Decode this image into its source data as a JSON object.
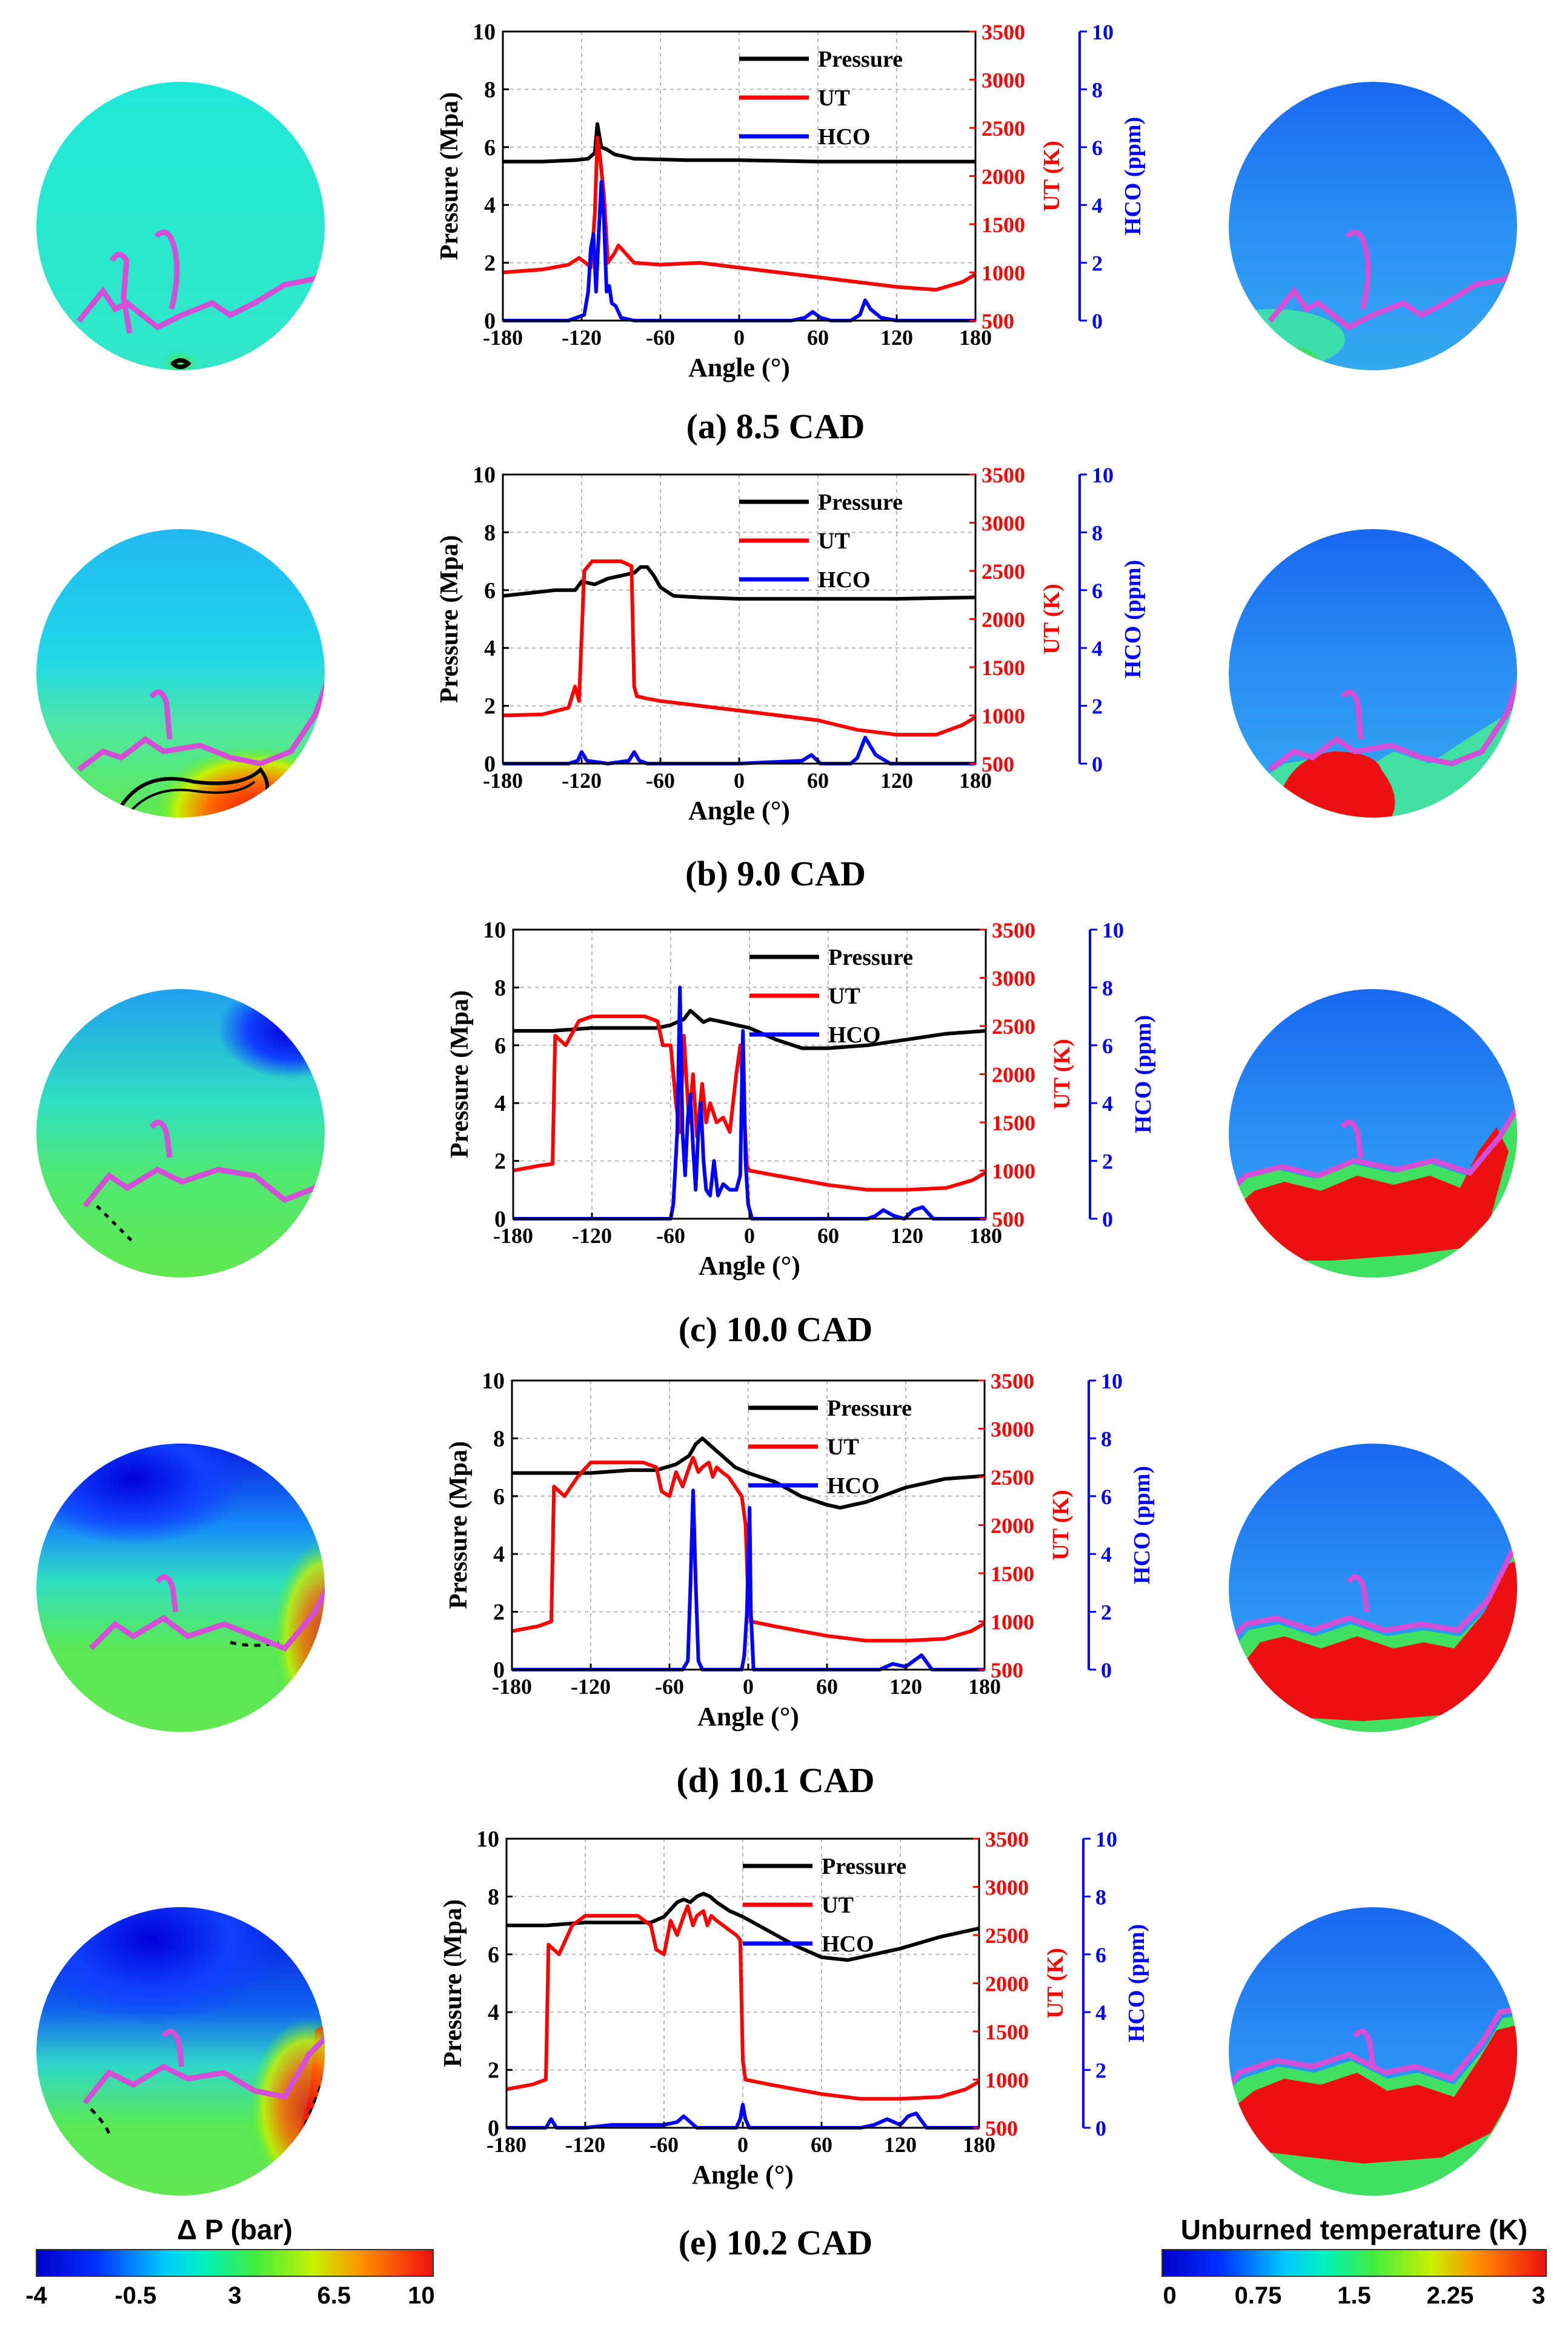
{
  "colors": {
    "pressure": "#000000",
    "ut": "#ff0000",
    "hco": "#0000ff",
    "flame_front": "#d34fd8",
    "grid": "#b8b8b8"
  },
  "axes": {
    "x_label": "Angle (°)",
    "y_left_label": "Pressure (Mpa)",
    "y_mid_label": "UT (K)",
    "y_right_label": "HCO (ppm)",
    "x_ticks": [
      "-180",
      "-120",
      "-60",
      "0",
      "60",
      "120",
      "180"
    ],
    "pressure_ticks": [
      "0",
      "2",
      "4",
      "6",
      "8",
      "10"
    ],
    "ut_ticks": [
      "500",
      "1000",
      "1500",
      "2000",
      "2500",
      "3000",
      "3500"
    ],
    "hco_ticks": [
      "0",
      "2",
      "4",
      "6",
      "8",
      "10"
    ]
  },
  "legend": [
    "Pressure",
    "UT",
    "HCO"
  ],
  "panels": [
    {
      "caption": "(a) 8.5 CAD"
    },
    {
      "caption": "(b) 9.0 CAD"
    },
    {
      "caption": "(c) 10.0 CAD"
    },
    {
      "caption": "(d) 10.1 CAD"
    },
    {
      "caption": "(e) 10.2 CAD"
    }
  ],
  "colorbar_left": {
    "title": "Δ P (bar)",
    "ticks": [
      "-4",
      "-0.5",
      "3",
      "6.5",
      "10"
    ]
  },
  "colorbar_right": {
    "title": "Unburned temperature (K)",
    "ticks": [
      "0",
      "0.75",
      "1.5",
      "2.25",
      "3"
    ]
  },
  "chart_data": [
    {
      "type": "line",
      "title": "(a) 8.5 CAD",
      "xlabel": "Angle (°)",
      "xlim": [
        -180,
        180
      ],
      "series": [
        {
          "name": "Pressure",
          "axis": "left",
          "ylim": [
            0,
            10
          ],
          "unit": "Mpa",
          "x": [
            -180,
            -150,
            -125,
            -115,
            -110,
            -108,
            -105,
            -100,
            -95,
            -80,
            -40,
            0,
            60,
            120,
            180
          ],
          "y": [
            5.5,
            5.5,
            5.55,
            5.6,
            5.8,
            6.8,
            6.0,
            5.9,
            5.75,
            5.6,
            5.55,
            5.55,
            5.5,
            5.5,
            5.5
          ]
        },
        {
          "name": "UT",
          "axis": "mid",
          "ylim": [
            500,
            3500
          ],
          "unit": "K",
          "x": [
            -180,
            -150,
            -130,
            -122,
            -117,
            -113,
            -110,
            -108,
            -106,
            -103,
            -100,
            -95,
            -92,
            -80,
            -60,
            -30,
            0,
            30,
            60,
            90,
            120,
            150,
            170,
            180
          ],
          "y": [
            1000,
            1030,
            1080,
            1150,
            1100,
            1050,
            1600,
            2400,
            2200,
            1800,
            1100,
            1200,
            1280,
            1100,
            1080,
            1100,
            1050,
            1000,
            950,
            900,
            850,
            820,
            900,
            980
          ]
        },
        {
          "name": "HCO",
          "axis": "right",
          "ylim": [
            0,
            10
          ],
          "unit": "ppm",
          "x": [
            -180,
            -130,
            -118,
            -115,
            -113,
            -111,
            -109,
            -107,
            -105,
            -103,
            -101,
            -99,
            -97,
            -94,
            -90,
            -80,
            -20,
            40,
            50,
            56,
            62,
            70,
            85,
            92,
            96,
            100,
            108,
            120,
            160,
            180
          ],
          "y": [
            0,
            0,
            0.2,
            1.0,
            2.5,
            3.0,
            1.0,
            3.0,
            4.8,
            3.5,
            1.0,
            1.2,
            0.6,
            0.5,
            0.1,
            0,
            0,
            0,
            0.1,
            0.3,
            0.1,
            0,
            0,
            0.2,
            0.7,
            0.4,
            0.1,
            0,
            0,
            0
          ]
        }
      ]
    },
    {
      "type": "line",
      "title": "(b) 9.0 CAD",
      "xlabel": "Angle (°)",
      "xlim": [
        -180,
        180
      ],
      "series": [
        {
          "name": "Pressure",
          "axis": "left",
          "ylim": [
            0,
            10
          ],
          "unit": "Mpa",
          "x": [
            -180,
            -160,
            -140,
            -125,
            -120,
            -110,
            -100,
            -90,
            -80,
            -75,
            -70,
            -65,
            -60,
            -50,
            -30,
            0,
            60,
            120,
            180
          ],
          "y": [
            5.8,
            5.9,
            6.0,
            6.0,
            6.3,
            6.2,
            6.4,
            6.5,
            6.6,
            6.8,
            6.8,
            6.5,
            6.1,
            5.8,
            5.75,
            5.7,
            5.7,
            5.7,
            5.75
          ]
        },
        {
          "name": "UT",
          "axis": "mid",
          "ylim": [
            500,
            3500
          ],
          "unit": "K",
          "x": [
            -180,
            -150,
            -130,
            -125,
            -122,
            -118,
            -112,
            -100,
            -90,
            -82,
            -80,
            -78,
            -72,
            -60,
            -30,
            0,
            30,
            60,
            90,
            120,
            150,
            170,
            180
          ],
          "y": [
            1000,
            1010,
            1080,
            1300,
            1150,
            2500,
            2600,
            2600,
            2600,
            2550,
            1300,
            1200,
            1180,
            1150,
            1100,
            1050,
            1000,
            950,
            850,
            800,
            800,
            900,
            980
          ]
        },
        {
          "name": "HCO",
          "axis": "right",
          "ylim": [
            0,
            10
          ],
          "unit": "ppm",
          "x": [
            -180,
            -130,
            -123,
            -120,
            -116,
            -100,
            -84,
            -80,
            -76,
            -70,
            0,
            48,
            55,
            62,
            85,
            90,
            96,
            104,
            115,
            180
          ],
          "y": [
            0,
            0,
            0.1,
            0.4,
            0.1,
            0,
            0.1,
            0.4,
            0.1,
            0,
            0,
            0.1,
            0.3,
            0,
            0,
            0.2,
            0.9,
            0.3,
            0,
            0
          ]
        }
      ]
    },
    {
      "type": "line",
      "title": "(c) 10.0 CAD",
      "xlabel": "Angle (°)",
      "xlim": [
        -180,
        180
      ],
      "series": [
        {
          "name": "Pressure",
          "axis": "left",
          "ylim": [
            0,
            10
          ],
          "unit": "Mpa",
          "x": [
            -180,
            -150,
            -120,
            -90,
            -70,
            -60,
            -50,
            -45,
            -40,
            -35,
            -30,
            -20,
            -10,
            0,
            20,
            40,
            60,
            90,
            120,
            150,
            180
          ],
          "y": [
            6.5,
            6.5,
            6.6,
            6.6,
            6.6,
            6.7,
            6.9,
            7.2,
            7.0,
            6.8,
            6.9,
            6.8,
            6.7,
            6.6,
            6.2,
            5.9,
            5.9,
            6.0,
            6.2,
            6.4,
            6.5
          ]
        },
        {
          "name": "UT",
          "axis": "mid",
          "ylim": [
            500,
            3500
          ],
          "unit": "K",
          "x": [
            -180,
            -160,
            -150,
            -148,
            -140,
            -130,
            -120,
            -100,
            -80,
            -70,
            -66,
            -60,
            -56,
            -53,
            -50,
            -46,
            -43,
            -40,
            -36,
            -33,
            -30,
            -25,
            -20,
            -15,
            -10,
            -7,
            -4,
            -2,
            0,
            20,
            40,
            60,
            90,
            120,
            150,
            170,
            180
          ],
          "y": [
            1000,
            1050,
            1070,
            2400,
            2300,
            2550,
            2600,
            2600,
            2600,
            2550,
            2300,
            2300,
            1700,
            1400,
            2400,
            1500,
            2000,
            1350,
            1900,
            1500,
            1700,
            1500,
            1550,
            1400,
            2000,
            2300,
            1600,
            1050,
            1000,
            950,
            900,
            850,
            800,
            800,
            820,
            900,
            980
          ]
        },
        {
          "name": "HCO",
          "axis": "right",
          "ylim": [
            0,
            10
          ],
          "unit": "ppm",
          "x": [
            -180,
            -60,
            -58,
            -55,
            -53,
            -51,
            -49,
            -47,
            -45,
            -43,
            -41,
            -39,
            -37,
            -35,
            -33,
            -30,
            -27,
            -24,
            -20,
            -15,
            -10,
            -7,
            -5,
            -3,
            -1,
            2,
            60,
            90,
            96,
            102,
            110,
            118,
            125,
            132,
            140,
            180
          ],
          "y": [
            0,
            0,
            0.5,
            3.0,
            8.0,
            3.0,
            1.5,
            3.5,
            4.3,
            2.5,
            1.0,
            3.0,
            4.0,
            2.0,
            1.0,
            0.8,
            2.0,
            0.8,
            1.2,
            1.0,
            1.0,
            1.5,
            6.5,
            2.0,
            0.5,
            0,
            0,
            0,
            0.1,
            0.3,
            0.1,
            0,
            0.3,
            0.4,
            0,
            0
          ]
        }
      ]
    },
    {
      "type": "line",
      "title": "(d) 10.1 CAD",
      "xlabel": "Angle (°)",
      "xlim": [
        -180,
        180
      ],
      "series": [
        {
          "name": "Pressure",
          "axis": "left",
          "ylim": [
            0,
            10
          ],
          "unit": "Mpa",
          "x": [
            -180,
            -150,
            -120,
            -90,
            -70,
            -55,
            -45,
            -40,
            -35,
            -30,
            -25,
            -20,
            -10,
            0,
            20,
            40,
            60,
            70,
            90,
            120,
            150,
            180
          ],
          "y": [
            6.8,
            6.8,
            6.8,
            6.9,
            6.9,
            7.1,
            7.4,
            7.8,
            8.0,
            7.8,
            7.6,
            7.4,
            7.0,
            6.8,
            6.5,
            6.0,
            5.7,
            5.6,
            5.8,
            6.3,
            6.6,
            6.7
          ]
        },
        {
          "name": "UT",
          "axis": "mid",
          "ylim": [
            500,
            3500
          ],
          "unit": "K",
          "x": [
            -180,
            -160,
            -150,
            -148,
            -140,
            -130,
            -120,
            -100,
            -80,
            -70,
            -66,
            -60,
            -55,
            -50,
            -45,
            -42,
            -38,
            -35,
            -30,
            -27,
            -24,
            -20,
            -15,
            -10,
            -5,
            -2,
            0,
            2,
            20,
            40,
            60,
            90,
            120,
            150,
            170,
            180
          ],
          "y": [
            900,
            950,
            1000,
            2400,
            2300,
            2500,
            2650,
            2650,
            2650,
            2600,
            2350,
            2300,
            2550,
            2400,
            2600,
            2700,
            2550,
            2600,
            2650,
            2500,
            2600,
            2550,
            2500,
            2400,
            2300,
            2000,
            1200,
            1000,
            950,
            900,
            850,
            800,
            800,
            820,
            900,
            980
          ]
        },
        {
          "name": "HCO",
          "axis": "right",
          "ylim": [
            0,
            10
          ],
          "unit": "ppm",
          "x": [
            -180,
            -50,
            -46,
            -44,
            -42,
            -40,
            -38,
            -35,
            -10,
            -5,
            -3,
            -1,
            1,
            2,
            4,
            60,
            100,
            110,
            120,
            126,
            132,
            140,
            180
          ],
          "y": [
            0,
            0,
            0.3,
            3.0,
            6.2,
            3.0,
            0.3,
            0,
            0,
            0,
            0.5,
            2.0,
            5.6,
            2.0,
            0,
            0,
            0,
            0.2,
            0.1,
            0.3,
            0.5,
            0,
            0
          ]
        }
      ]
    },
    {
      "type": "line",
      "title": "(e) 10.2 CAD",
      "xlabel": "Angle (°)",
      "xlim": [
        -180,
        180
      ],
      "series": [
        {
          "name": "Pressure",
          "axis": "left",
          "ylim": [
            0,
            10
          ],
          "unit": "Mpa",
          "x": [
            -180,
            -150,
            -120,
            -90,
            -70,
            -60,
            -50,
            -45,
            -40,
            -35,
            -30,
            -25,
            -20,
            -10,
            0,
            20,
            40,
            60,
            80,
            90,
            120,
            150,
            180
          ],
          "y": [
            7.0,
            7.0,
            7.1,
            7.1,
            7.1,
            7.3,
            7.8,
            7.9,
            7.8,
            8.0,
            8.1,
            8.0,
            7.8,
            7.5,
            7.3,
            6.8,
            6.3,
            5.9,
            5.8,
            5.9,
            6.2,
            6.6,
            6.9
          ]
        },
        {
          "name": "UT",
          "axis": "mid",
          "ylim": [
            500,
            3500
          ],
          "unit": "K",
          "x": [
            -180,
            -160,
            -150,
            -148,
            -140,
            -130,
            -120,
            -100,
            -80,
            -70,
            -66,
            -60,
            -55,
            -50,
            -45,
            -42,
            -38,
            -35,
            -30,
            -27,
            -24,
            -20,
            -15,
            -10,
            -5,
            -2,
            0,
            2,
            20,
            40,
            60,
            90,
            120,
            150,
            170,
            180
          ],
          "y": [
            900,
            950,
            1000,
            2400,
            2300,
            2600,
            2700,
            2700,
            2700,
            2600,
            2350,
            2300,
            2650,
            2500,
            2700,
            2800,
            2600,
            2700,
            2750,
            2600,
            2700,
            2650,
            2600,
            2550,
            2500,
            2450,
            1200,
            1000,
            950,
            900,
            850,
            800,
            800,
            820,
            900,
            980
          ]
        },
        {
          "name": "HCO",
          "axis": "right",
          "ylim": [
            0,
            10
          ],
          "unit": "ppm",
          "x": [
            -180,
            -150,
            -146,
            -142,
            -120,
            -100,
            -80,
            -60,
            -50,
            -45,
            -40,
            -35,
            -20,
            -5,
            -2,
            0,
            2,
            5,
            30,
            60,
            90,
            100,
            110,
            120,
            126,
            132,
            140,
            180
          ],
          "y": [
            0,
            0,
            0.3,
            0,
            0,
            0.1,
            0.1,
            0.1,
            0.2,
            0.4,
            0.2,
            0,
            0,
            0,
            0.3,
            0.8,
            0.3,
            0,
            0,
            0,
            0,
            0.1,
            0.3,
            0.1,
            0.4,
            0.5,
            0,
            0
          ]
        }
      ]
    }
  ]
}
